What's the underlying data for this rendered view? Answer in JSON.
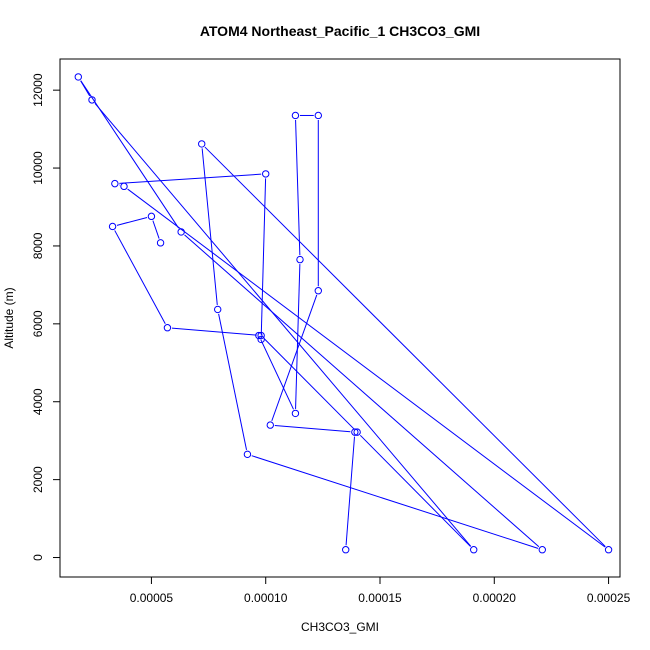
{
  "chart_data": {
    "type": "scatter",
    "title": "ATOM4 Northeast_Pacific_1 CH3CO3_GMI",
    "xlabel": "CH3CO3_GMI",
    "ylabel": "Altitude (m)",
    "xlim": [
      1e-05,
      0.000255
    ],
    "ylim": [
      -500,
      12800
    ],
    "x_ticks": [
      5e-05,
      0.0001,
      0.00015,
      0.0002,
      0.00025
    ],
    "x_tick_labels": [
      "0.00005",
      "0.00010",
      "0.00015",
      "0.00020",
      "0.00025"
    ],
    "y_ticks": [
      0,
      2000,
      4000,
      6000,
      8000,
      10000,
      12000
    ],
    "y_tick_labels": [
      "0",
      "2000",
      "4000",
      "6000",
      "8000",
      "10000",
      "12000"
    ],
    "grid": false,
    "legend": "none",
    "line_color": "#0000ff",
    "marker": "open-circle",
    "series": [
      {
        "x": [
          0.000135,
          0.000139,
          0.000102,
          0.000123,
          0.000123,
          0.000113,
          0.000115,
          0.000113,
          9.7e-05,
          9.8e-05,
          0.0001,
          3.4e-05,
          3.8e-05,
          0.00025,
          7.2e-05,
          7.9e-05,
          9.2e-05,
          0.000221,
          6.3e-05,
          1.8e-05,
          2.4e-05,
          0.000191,
          0.00014,
          9.8e-05,
          5.7e-05,
          3.3e-05,
          5e-05,
          5.4e-05
        ],
        "y": [
          200,
          3220,
          3400,
          6850,
          11350,
          11350,
          7650,
          3700,
          5700,
          5600,
          9850,
          9600,
          9530,
          200,
          10620,
          6370,
          2650,
          200,
          8360,
          12340,
          11750,
          200,
          3220,
          5700,
          5900,
          8500,
          8760,
          8080
        ]
      }
    ]
  }
}
